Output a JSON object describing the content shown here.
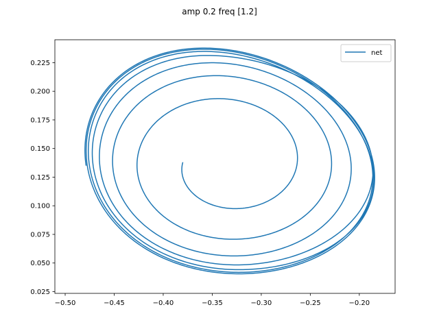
{
  "chart_data": {
    "type": "line",
    "title": "amp 0.2 freq [1.2]",
    "xlabel": "",
    "ylabel": "",
    "xlim": [
      -0.5105,
      -0.1635
    ],
    "ylim": [
      0.0235,
      0.245
    ],
    "xticks": [
      -0.5,
      -0.45,
      -0.4,
      -0.35,
      -0.3,
      -0.25,
      -0.2
    ],
    "xtick_labels": [
      "−0.50",
      "−0.45",
      "−0.40",
      "−0.35",
      "−0.30",
      "−0.25",
      "−0.20"
    ],
    "yticks": [
      0.025,
      0.05,
      0.075,
      0.1,
      0.125,
      0.15,
      0.175,
      0.2,
      0.225
    ],
    "ytick_labels": [
      "0.025",
      "0.050",
      "0.075",
      "0.100",
      "0.125",
      "0.150",
      "0.175",
      "0.200",
      "0.225"
    ],
    "grid": false,
    "legend_position": "top-right",
    "series": [
      {
        "name": "net",
        "color": "#1f77b4",
        "description_points_note": "spiral trajectory converging onto a limit cycle",
        "start": [
          -0.38,
          0.138
        ],
        "center": [
          -0.335,
          0.138
        ],
        "limit_cycle": {
          "left_x": -0.489,
          "right_x": -0.192,
          "top_y": 0.235,
          "bottom_y": 0.035
        },
        "max_extent_x": -0.176,
        "min_extent_y": 0.033,
        "turns": 7
      }
    ]
  }
}
